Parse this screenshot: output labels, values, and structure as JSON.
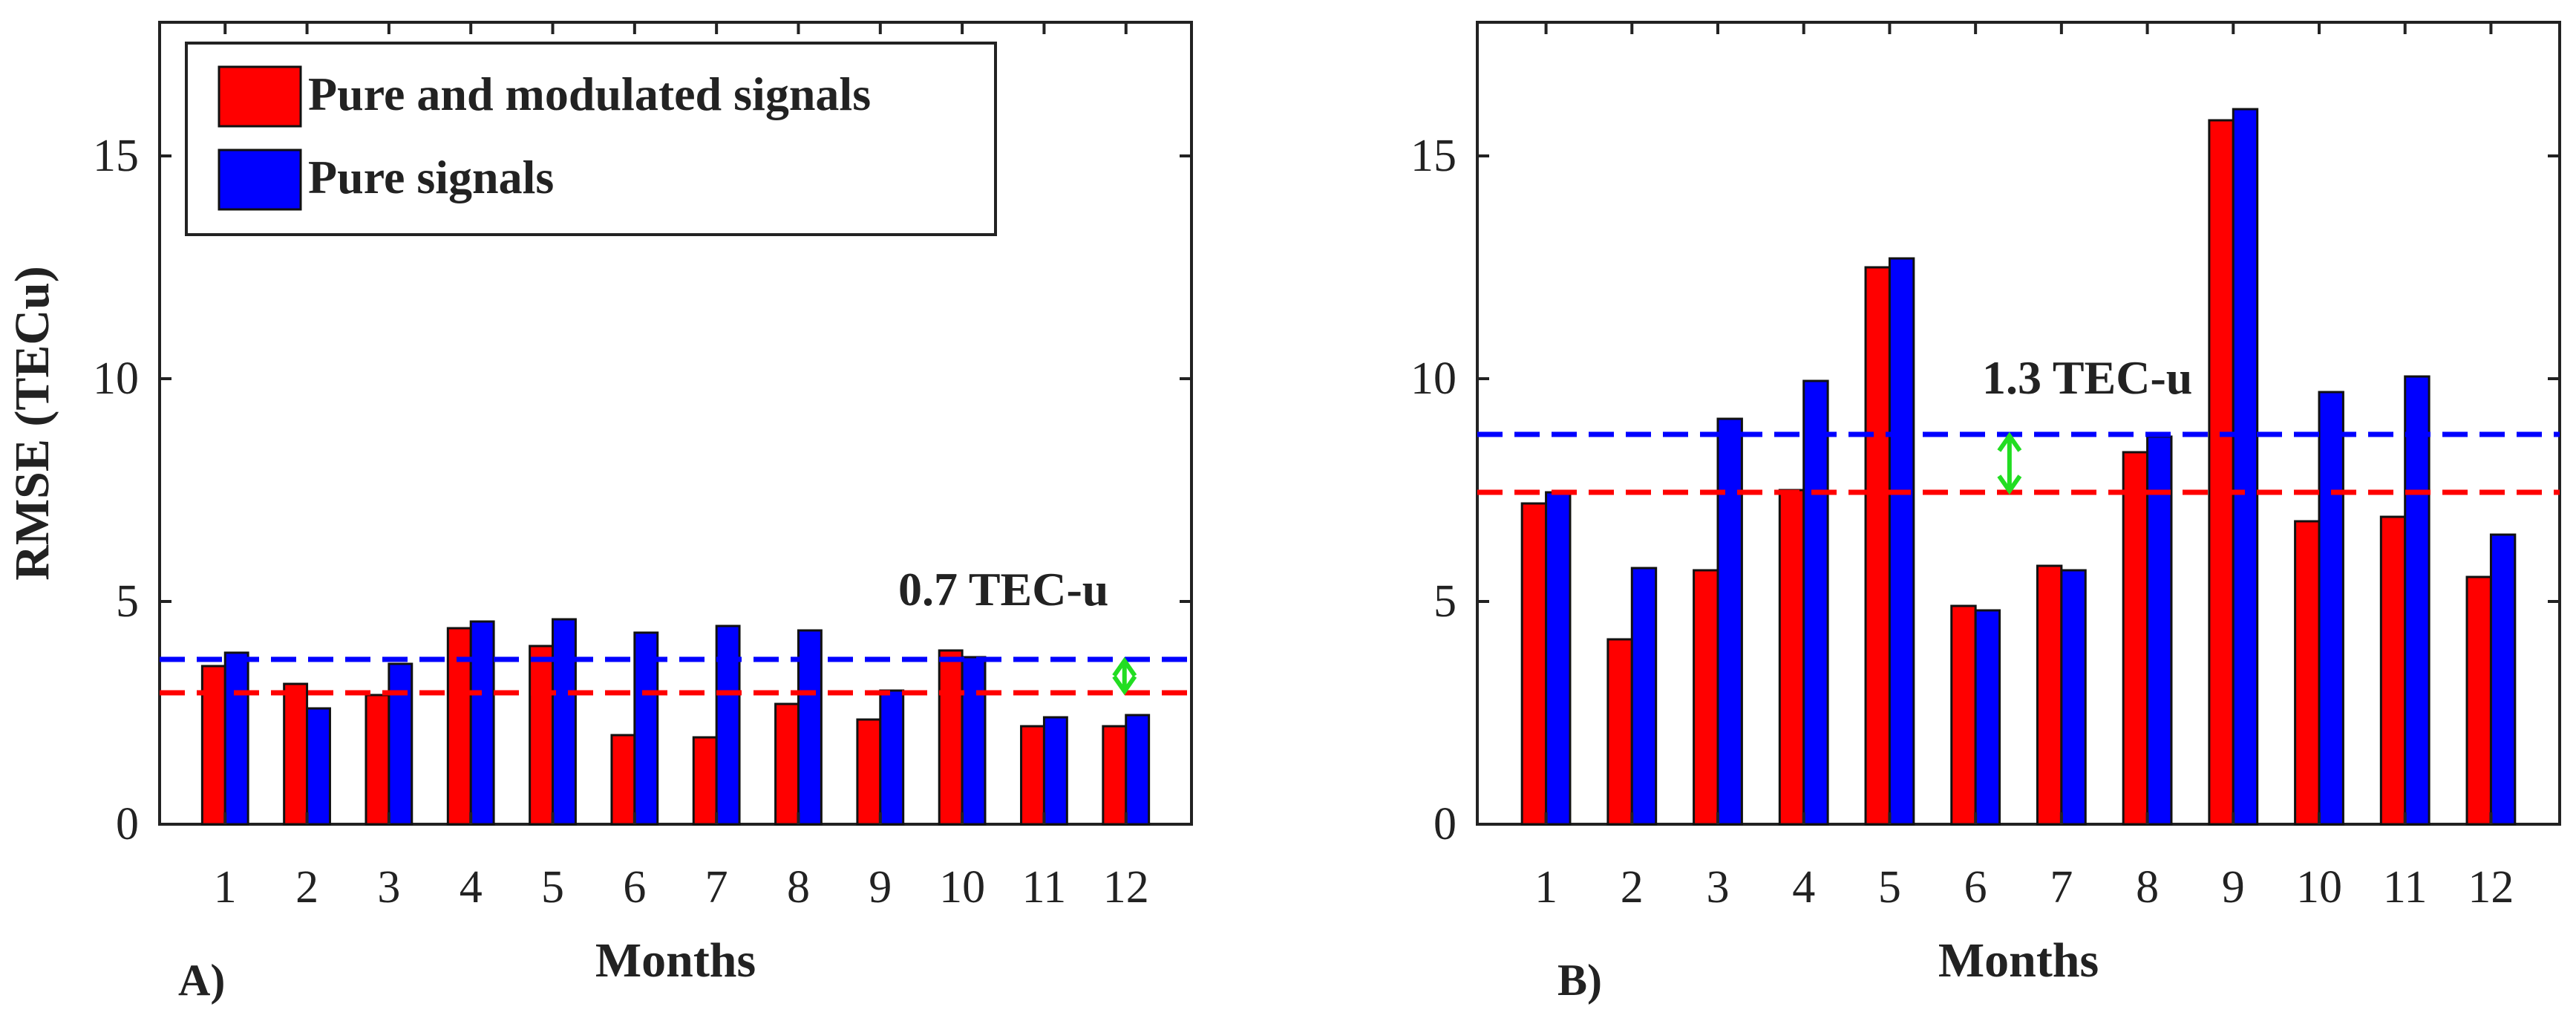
{
  "chart_data": [
    {
      "type": "bar",
      "panel_label": "A)",
      "title": "",
      "xlabel": "Months",
      "ylabel": "RMSE (TECu)",
      "ylim": [
        0,
        18
      ],
      "yticks": [
        "0",
        "5",
        "10",
        "15"
      ],
      "categories": [
        "1",
        "2",
        "3",
        "4",
        "5",
        "6",
        "7",
        "8",
        "9",
        "10",
        "11",
        "12"
      ],
      "series": [
        {
          "name": "Pure and modulated signals",
          "color": "#ff0000",
          "values": [
            3.55,
            3.15,
            2.9,
            4.4,
            4.0,
            2.0,
            1.95,
            2.7,
            2.35,
            3.9,
            2.2,
            2.2
          ]
        },
        {
          "name": "Pure signals",
          "color": "#0000ff",
          "values": [
            3.85,
            2.6,
            3.6,
            4.55,
            4.6,
            4.3,
            4.45,
            4.35,
            3.0,
            3.75,
            2.4,
            2.45
          ]
        }
      ],
      "mean_lines": [
        {
          "series": "Pure signals",
          "value": 3.7,
          "color": "#0000ff",
          "style": "dashed"
        },
        {
          "series": "Pure and modulated signals",
          "value": 2.95,
          "color": "#ff0000",
          "style": "dashed"
        }
      ],
      "annotation": {
        "text": "0.7 TEC-u",
        "color": "#22dd22"
      },
      "legend": {
        "placement": "top-left",
        "entries": [
          {
            "label": "Pure and modulated signals",
            "color": "#ff0000"
          },
          {
            "label": "Pure signals",
            "color": "#0000ff"
          }
        ]
      },
      "grid": false
    },
    {
      "type": "bar",
      "panel_label": "B)",
      "title": "",
      "xlabel": "Months",
      "ylabel": "",
      "ylim": [
        0,
        18
      ],
      "yticks": [
        "0",
        "5",
        "10",
        "15"
      ],
      "categories": [
        "1",
        "2",
        "3",
        "4",
        "5",
        "6",
        "7",
        "8",
        "9",
        "10",
        "11",
        "12"
      ],
      "series": [
        {
          "name": "Pure and modulated signals",
          "color": "#ff0000",
          "values": [
            7.2,
            4.15,
            5.7,
            7.5,
            12.5,
            4.9,
            5.8,
            8.35,
            15.8,
            6.8,
            6.9,
            5.55
          ]
        },
        {
          "name": "Pure signals",
          "color": "#0000ff",
          "values": [
            7.45,
            5.75,
            9.1,
            9.95,
            12.7,
            4.8,
            5.7,
            8.7,
            16.05,
            9.7,
            10.05,
            6.5
          ]
        }
      ],
      "mean_lines": [
        {
          "series": "Pure signals",
          "value": 8.75,
          "color": "#0000ff",
          "style": "dashed"
        },
        {
          "series": "Pure and modulated signals",
          "value": 7.45,
          "color": "#ff0000",
          "style": "dashed"
        }
      ],
      "annotation": {
        "text": "1.3 TEC-u",
        "color": "#22dd22"
      },
      "grid": false
    }
  ]
}
